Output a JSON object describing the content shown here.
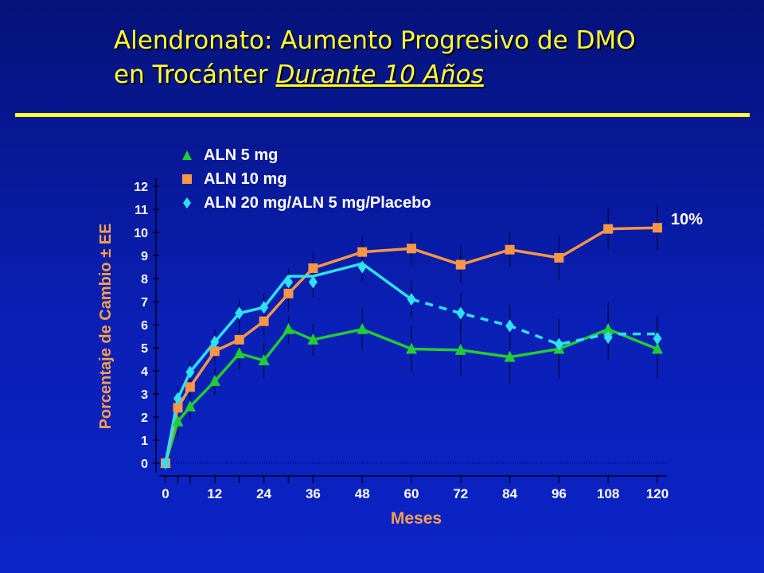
{
  "title": {
    "line1": "Alendronato: Aumento Progresivo de DMO",
    "line2_prefix": "en Trocánter ",
    "line2_emphasis": "Durante 10 Años"
  },
  "chart_data": {
    "type": "line",
    "ylabel": "Porcentaje de Cambio ± EE",
    "xlabel": "Meses",
    "x_ticks": [
      "0",
      "12",
      "24",
      "36",
      "48",
      "60",
      "72",
      "84",
      "96",
      "108",
      "120"
    ],
    "x_tick_values": [
      0,
      12,
      24,
      36,
      48,
      60,
      72,
      84,
      96,
      108,
      120
    ],
    "y_ticks": [
      "0",
      "1",
      "2",
      "3",
      "4",
      "5",
      "6",
      "7",
      "8",
      "9",
      "10",
      "11",
      "12"
    ],
    "xlim": [
      0,
      120
    ],
    "ylim": [
      0,
      12
    ],
    "annotation": "10%",
    "series": [
      {
        "name": "ALN 5 mg",
        "color": "#22cc33",
        "marker": "triangle",
        "x": [
          0,
          3,
          6,
          12,
          18,
          24,
          30,
          36,
          48,
          60,
          72,
          84,
          96,
          108,
          120
        ],
        "y": [
          0,
          1.8,
          2.45,
          3.55,
          4.75,
          4.45,
          5.8,
          5.35,
          5.8,
          4.95,
          4.9,
          4.6,
          4.95,
          5.8,
          4.95
        ],
        "err": [
          0,
          0.65,
          0.55,
          0.6,
          0.7,
          0.75,
          0.6,
          0.7,
          0.9,
          1.0,
          1.1,
          1.15,
          1.3,
          1.15,
          1.3
        ],
        "dashed_from_index": null
      },
      {
        "name": "ALN 10 mg",
        "color": "#f79646",
        "marker": "square",
        "x": [
          0,
          3,
          6,
          12,
          18,
          24,
          30,
          36,
          48,
          60,
          72,
          84,
          96,
          108,
          120
        ],
        "y": [
          0,
          2.4,
          3.3,
          4.85,
          5.35,
          6.15,
          7.35,
          8.45,
          9.15,
          9.3,
          8.6,
          9.25,
          8.9,
          10.15,
          10.2
        ],
        "err": [
          0,
          0.55,
          0.55,
          0.6,
          0.75,
          0.7,
          0.75,
          0.7,
          0.7,
          0.7,
          0.8,
          0.75,
          0.95,
          0.9,
          1.0
        ],
        "dashed_from_index": null
      },
      {
        "name": "ALN 20 mg/ALN 5 mg/Placebo",
        "color": "#2ee0f0",
        "marker": "diamond",
        "x": [
          0,
          3,
          6,
          12,
          18,
          24,
          30,
          36,
          48,
          60,
          72,
          84,
          96,
          108,
          120
        ],
        "y": [
          0,
          2.8,
          3.95,
          5.25,
          6.5,
          6.75,
          7.85,
          7.85,
          8.5,
          7.1,
          6.5,
          5.95,
          5.15,
          5.45,
          5.4
        ],
        "err": [
          0,
          0.5,
          0.5,
          0.55,
          0.6,
          0.55,
          0.6,
          0.65,
          0.6,
          0.8,
          0.85,
          0.9,
          1.0,
          1.0,
          1.0
        ],
        "line_y": [
          0,
          2.8,
          3.95,
          5.25,
          6.5,
          6.75,
          8.1,
          8.1,
          8.65,
          7.1,
          6.5,
          5.95,
          5.15,
          5.6,
          5.6
        ],
        "dashed_from_index": 9
      }
    ]
  }
}
